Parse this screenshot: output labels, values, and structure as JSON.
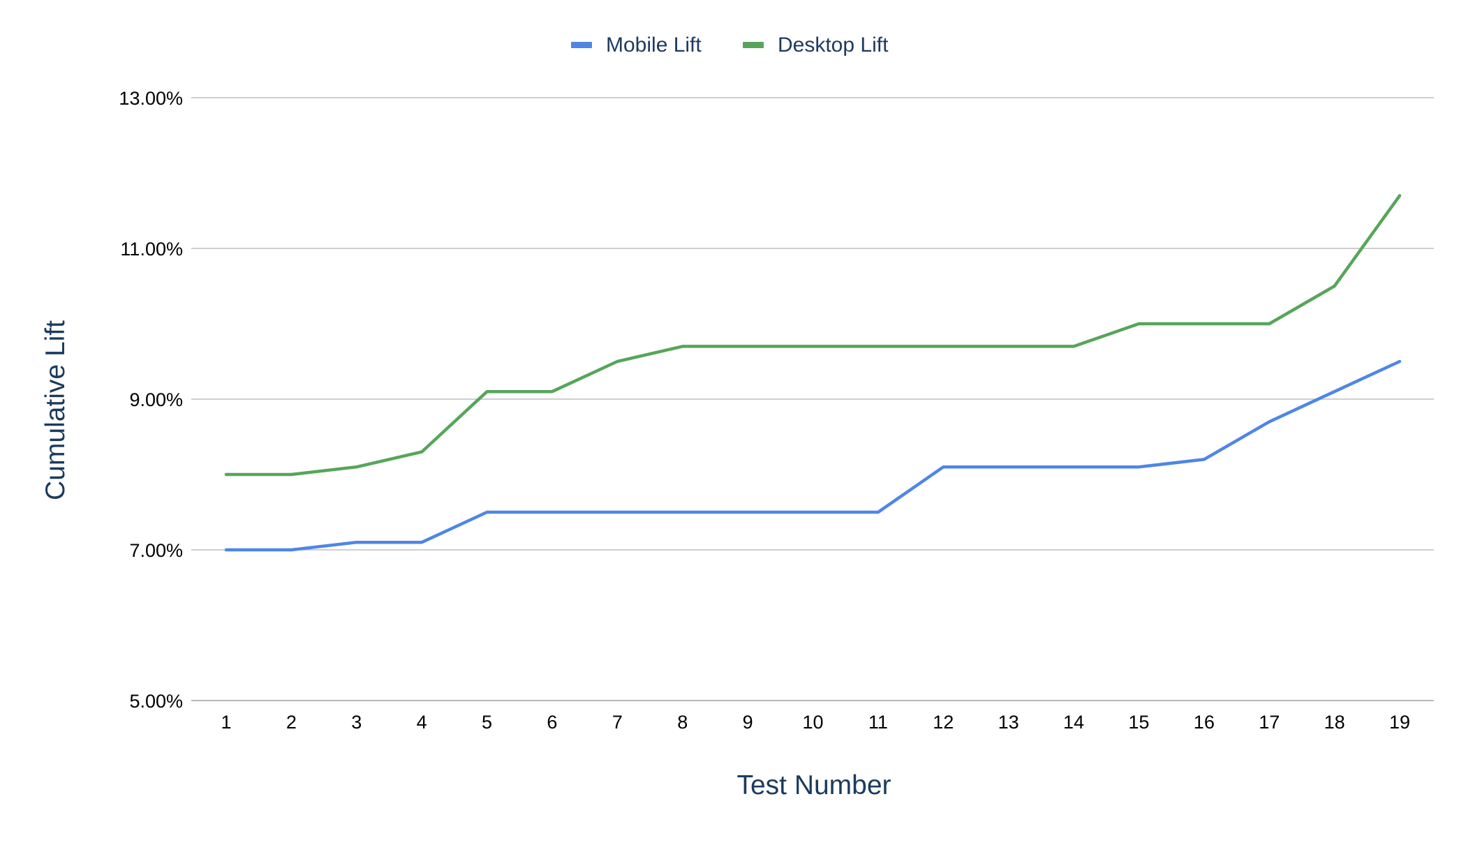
{
  "chart_data": {
    "type": "line",
    "title": "",
    "xlabel": "Test Number",
    "ylabel": "Cumulative Lift",
    "x": [
      1,
      2,
      3,
      4,
      5,
      6,
      7,
      8,
      9,
      10,
      11,
      12,
      13,
      14,
      15,
      16,
      17,
      18,
      19
    ],
    "y_ticks": [
      "5.00%",
      "7.00%",
      "9.00%",
      "11.00%",
      "13.00%"
    ],
    "ylim": [
      5,
      13
    ],
    "y_unit": "%",
    "grid": true,
    "legend_position": "top-center",
    "series": [
      {
        "name": "Mobile Lift",
        "color": "#4f86e6",
        "values": [
          7.0,
          7.0,
          7.1,
          7.1,
          7.5,
          7.5,
          7.5,
          7.5,
          7.5,
          7.5,
          7.5,
          8.1,
          8.1,
          8.1,
          8.1,
          8.2,
          8.7,
          9.1,
          9.5
        ]
      },
      {
        "name": "Desktop Lift",
        "color": "#57a55a",
        "values": [
          8.0,
          8.0,
          8.1,
          8.3,
          9.1,
          9.1,
          9.5,
          9.7,
          9.7,
          9.7,
          9.7,
          9.7,
          9.7,
          9.7,
          10.0,
          10.0,
          10.0,
          10.5,
          11.7
        ]
      }
    ]
  }
}
